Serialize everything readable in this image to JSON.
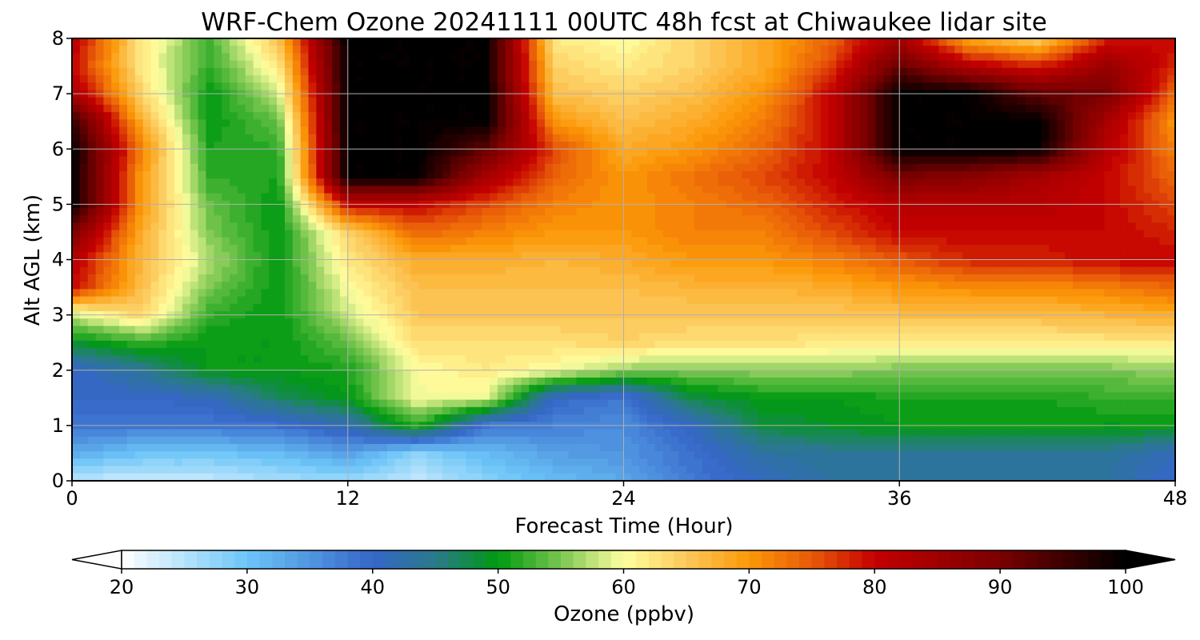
{
  "chart_data": {
    "type": "heatmap",
    "title": "WRF-Chem Ozone  20241111 00UTC 48h fcst at Chiwaukee lidar site",
    "xlabel": "Forecast Time (Hour)",
    "ylabel": "Alt AGL (km)",
    "xlim": [
      0,
      48
    ],
    "ylim": [
      0,
      8
    ],
    "xticks": [
      0,
      12,
      24,
      36,
      48
    ],
    "yticks": [
      0,
      1,
      2,
      3,
      4,
      5,
      6,
      7,
      8
    ],
    "grid": true,
    "x": [
      0,
      3,
      6,
      9,
      12,
      15,
      18,
      21,
      24,
      27,
      30,
      33,
      36,
      39,
      42,
      45,
      48
    ],
    "y": [
      0,
      0.5,
      1,
      1.5,
      2,
      2.5,
      3,
      3.5,
      4,
      4.5,
      5,
      5.5,
      6,
      6.5,
      7,
      7.5,
      8
    ],
    "z": [
      [
        24,
        24,
        24,
        26,
        27,
        24,
        28,
        31,
        33,
        38,
        41,
        43,
        43,
        43,
        43,
        43,
        40
      ],
      [
        33,
        30,
        30,
        31,
        34,
        28,
        31,
        34,
        35,
        39,
        43,
        44,
        44,
        44,
        44,
        44,
        41
      ],
      [
        38,
        38,
        38,
        39,
        42,
        52,
        38,
        37,
        36,
        41,
        48,
        49,
        50,
        50,
        50,
        50,
        50
      ],
      [
        40,
        40,
        41,
        47,
        50,
        60,
        59,
        40,
        38,
        48,
        50,
        50,
        51,
        51,
        51,
        52,
        52
      ],
      [
        40,
        44,
        50,
        50,
        51,
        60,
        62,
        60,
        56,
        55,
        56,
        56,
        55,
        55,
        55,
        55,
        56
      ],
      [
        49,
        52,
        50,
        50,
        54,
        63,
        63,
        63,
        64,
        63,
        63,
        62,
        62,
        62,
        62,
        62,
        62
      ],
      [
        58,
        64,
        52,
        50,
        58,
        65,
        65,
        65,
        65,
        65,
        65,
        65,
        66,
        66,
        66,
        67,
        68
      ],
      [
        80,
        66,
        55,
        50,
        60,
        66,
        66,
        66,
        66,
        67,
        67,
        68,
        70,
        71,
        71,
        72,
        74
      ],
      [
        82,
        67,
        57,
        50,
        62,
        68,
        68,
        67,
        68,
        70,
        70,
        72,
        75,
        78,
        78,
        80,
        80
      ],
      [
        90,
        68,
        55,
        50,
        64,
        74,
        72,
        70,
        70,
        72,
        72,
        76,
        80,
        80,
        80,
        80,
        78
      ],
      [
        100,
        70,
        54,
        50,
        80,
        80,
        76,
        72,
        70,
        72,
        74,
        78,
        82,
        82,
        82,
        80,
        76
      ],
      [
        100,
        70,
        52,
        51,
        100,
        100,
        84,
        74,
        70,
        73,
        76,
        80,
        90,
        88,
        84,
        80,
        74
      ],
      [
        100,
        72,
        51,
        52,
        100,
        100,
        92,
        76,
        68,
        70,
        74,
        80,
        100,
        100,
        100,
        82,
        72
      ],
      [
        96,
        68,
        50,
        54,
        100,
        100,
        100,
        70,
        66,
        68,
        72,
        80,
        100,
        100,
        100,
        84,
        70
      ],
      [
        84,
        64,
        50,
        58,
        100,
        100,
        100,
        66,
        64,
        66,
        70,
        80,
        100,
        100,
        92,
        90,
        74
      ],
      [
        80,
        62,
        52,
        62,
        100,
        100,
        100,
        64,
        62,
        64,
        68,
        76,
        92,
        82,
        78,
        86,
        78
      ],
      [
        82,
        62,
        53,
        66,
        100,
        100,
        100,
        62,
        60,
        64,
        68,
        74,
        84,
        68,
        64,
        78,
        80
      ]
    ],
    "colorbar": {
      "label": "Ozone  (ppbv)",
      "min": 20,
      "max": 100,
      "ticks": [
        20,
        30,
        40,
        50,
        60,
        70,
        80,
        90,
        100
      ],
      "extend": "both",
      "levels": 80,
      "stops": [
        {
          "v": 20,
          "c": "#ffffff"
        },
        {
          "v": 30,
          "c": "#6cc5f8"
        },
        {
          "v": 40,
          "c": "#3566c8"
        },
        {
          "v": 45,
          "c": "#2a7a8a"
        },
        {
          "v": 50,
          "c": "#009a10"
        },
        {
          "v": 55,
          "c": "#7ac650"
        },
        {
          "v": 60,
          "c": "#ffffa0"
        },
        {
          "v": 65,
          "c": "#fcc85a"
        },
        {
          "v": 70,
          "c": "#fc9808"
        },
        {
          "v": 75,
          "c": "#e85a08"
        },
        {
          "v": 80,
          "c": "#c40000"
        },
        {
          "v": 90,
          "c": "#7a0000"
        },
        {
          "v": 100,
          "c": "#000000"
        }
      ]
    }
  }
}
